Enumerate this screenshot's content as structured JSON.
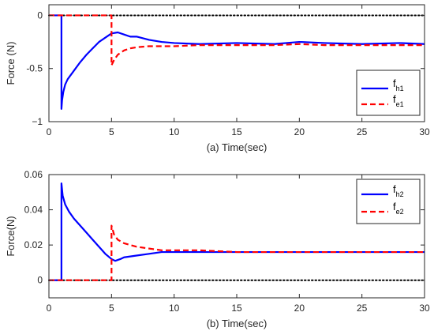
{
  "chart_data": [
    {
      "type": "line",
      "xlabel": "(a) Time(sec)",
      "ylabel": "Force (N)",
      "xlim": [
        0,
        30
      ],
      "ylim": [
        -1,
        0.1
      ],
      "xticks": [
        0,
        5,
        10,
        15,
        20,
        25,
        30
      ],
      "xtick_labels": [
        "0",
        "5",
        "10",
        "15",
        "20",
        "25",
        "30"
      ],
      "yticks": [
        0,
        -0.5,
        -1
      ],
      "ytick_labels": [
        "0",
        "-0.5",
        "−1"
      ],
      "reference_line": {
        "y": 0,
        "color": "#000000",
        "style": "dotted"
      },
      "legend": {
        "position": "bottom-right"
      },
      "series": [
        {
          "name": "f",
          "subscript": "h1",
          "color": "#0000ff",
          "style": "solid",
          "x": [
            0,
            1.0,
            1.0,
            1.05,
            1.15,
            1.3,
            1.5,
            2.0,
            2.5,
            3.0,
            3.5,
            4.0,
            4.5,
            5.0,
            5.5,
            6.0,
            6.5,
            7.0,
            8.0,
            9.0,
            10,
            12,
            15,
            18,
            20,
            22,
            25,
            28,
            30
          ],
          "y": [
            0,
            0,
            -0.88,
            -0.8,
            -0.72,
            -0.65,
            -0.6,
            -0.52,
            -0.44,
            -0.37,
            -0.31,
            -0.25,
            -0.21,
            -0.17,
            -0.16,
            -0.18,
            -0.2,
            -0.2,
            -0.23,
            -0.25,
            -0.26,
            -0.27,
            -0.26,
            -0.27,
            -0.25,
            -0.26,
            -0.27,
            -0.26,
            -0.27
          ]
        },
        {
          "name": "f",
          "subscript": "e1",
          "color": "#ff0000",
          "style": "dashed",
          "x": [
            0,
            4.95,
            5.0,
            5.0,
            5.2,
            5.5,
            6.0,
            6.5,
            7.0,
            8.0,
            9.0,
            10,
            12,
            15,
            18,
            20,
            22,
            25,
            28,
            30
          ],
          "y": [
            0,
            0,
            0,
            -0.47,
            -0.42,
            -0.37,
            -0.33,
            -0.31,
            -0.3,
            -0.29,
            -0.29,
            -0.29,
            -0.28,
            -0.28,
            -0.28,
            -0.27,
            -0.28,
            -0.28,
            -0.28,
            -0.28
          ]
        }
      ]
    },
    {
      "type": "line",
      "xlabel": "(b) Time(sec)",
      "ylabel": "Force(N)",
      "xlim": [
        0,
        30
      ],
      "ylim": [
        -0.01,
        0.06
      ],
      "xticks": [
        0,
        5,
        10,
        15,
        20,
        25,
        30
      ],
      "xtick_labels": [
        "0",
        "5",
        "10",
        "15",
        "20",
        "25",
        "30"
      ],
      "yticks": [
        0,
        0.02,
        0.04,
        0.06
      ],
      "ytick_labels": [
        "0",
        "0.02",
        "0.04",
        "0.06"
      ],
      "reference_line": {
        "y": 0,
        "color": "#000000",
        "style": "dotted"
      },
      "legend": {
        "position": "top-right"
      },
      "series": [
        {
          "name": "f",
          "subscript": "h2",
          "color": "#0000ff",
          "style": "solid",
          "x": [
            0,
            1.0,
            1.0,
            1.1,
            1.3,
            1.6,
            2.0,
            2.5,
            3.0,
            3.5,
            4.0,
            4.5,
            5.0,
            5.3,
            5.7,
            6.0,
            7.0,
            8.0,
            9.0,
            10,
            12,
            15,
            18,
            20,
            25,
            30
          ],
          "y": [
            0,
            0,
            0.055,
            0.048,
            0.043,
            0.039,
            0.035,
            0.031,
            0.027,
            0.023,
            0.019,
            0.015,
            0.012,
            0.011,
            0.012,
            0.013,
            0.014,
            0.015,
            0.016,
            0.016,
            0.016,
            0.016,
            0.016,
            0.016,
            0.016,
            0.016
          ]
        },
        {
          "name": "f",
          "subscript": "e2",
          "color": "#ff0000",
          "style": "dashed",
          "x": [
            0,
            4.95,
            5.0,
            5.0,
            5.2,
            5.5,
            6.0,
            6.5,
            7.0,
            8.0,
            9.0,
            10,
            12,
            15,
            18,
            20,
            25,
            30
          ],
          "y": [
            0,
            0,
            0,
            0.031,
            0.026,
            0.023,
            0.021,
            0.02,
            0.019,
            0.018,
            0.017,
            0.017,
            0.017,
            0.016,
            0.016,
            0.016,
            0.016,
            0.016
          ]
        }
      ]
    }
  ]
}
